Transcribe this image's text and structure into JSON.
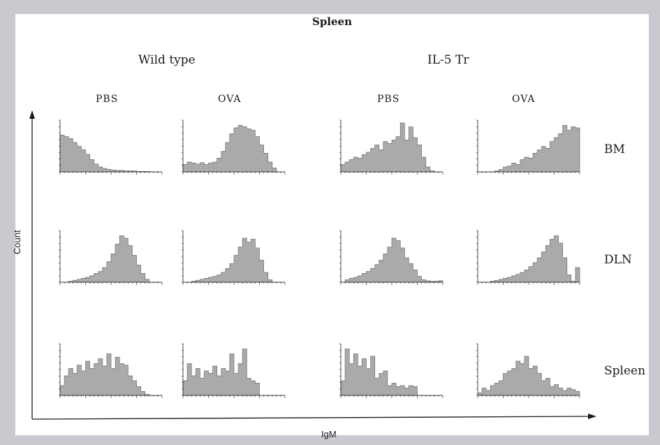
{
  "figure": {
    "title": "Spleen",
    "groups": [
      "Wild type",
      "IL-5 Tr"
    ],
    "columns": [
      "PBS",
      "OVA",
      "PBS",
      "OVA"
    ],
    "rows": [
      "BM",
      "DLN",
      "Spleen"
    ],
    "y_axis_label": "Count",
    "x_axis_label": "IgM"
  },
  "colors": {
    "background": "#c9cacf",
    "panel": "#ffffff",
    "histogram_fill": "#a9aaaa",
    "histogram_stroke": "#6e6e6e",
    "axis": "#1a1a1a"
  },
  "chart_data": {
    "type": "area",
    "description_of_values": "relative count (0-1 of panel height) across IgM fluorescence bins, 24 bins per histogram",
    "xlabel": "IgM",
    "ylabel": "Count",
    "grid": false,
    "panels": [
      {
        "row": "BM",
        "column": "PBS",
        "group": "Wild type",
        "values": [
          0.75,
          0.72,
          0.68,
          0.6,
          0.52,
          0.45,
          0.36,
          0.25,
          0.16,
          0.1,
          0.07,
          0.05,
          0.04,
          0.03,
          0.03,
          0.02,
          0.02,
          0.02,
          0.01,
          0.01,
          0.01,
          0,
          0,
          0
        ]
      },
      {
        "row": "BM",
        "column": "OVA",
        "group": "Wild type",
        "values": [
          0.15,
          0.2,
          0.18,
          0.16,
          0.19,
          0.15,
          0.18,
          0.2,
          0.28,
          0.42,
          0.6,
          0.78,
          0.9,
          0.95,
          0.92,
          0.88,
          0.85,
          0.72,
          0.55,
          0.38,
          0.2,
          0.08,
          0,
          0
        ]
      },
      {
        "row": "BM",
        "column": "PBS",
        "group": "IL-5 Tr",
        "values": [
          0.15,
          0.2,
          0.25,
          0.3,
          0.28,
          0.35,
          0.4,
          0.48,
          0.55,
          0.45,
          0.62,
          0.58,
          0.65,
          0.72,
          1.0,
          0.65,
          0.92,
          0.7,
          0.55,
          0.3,
          0.1,
          0.02,
          0,
          0
        ]
      },
      {
        "row": "BM",
        "column": "OVA",
        "group": "IL-5 Tr",
        "values": [
          0,
          0,
          0,
          0,
          0.02,
          0.05,
          0.1,
          0.12,
          0.18,
          0.15,
          0.25,
          0.3,
          0.28,
          0.38,
          0.45,
          0.52,
          0.48,
          0.62,
          0.7,
          0.78,
          0.95,
          0.85,
          0.92,
          0.9
        ]
      },
      {
        "row": "DLN",
        "column": "PBS",
        "group": "Wild type",
        "values": [
          0,
          0,
          0.02,
          0.04,
          0.06,
          0.08,
          0.1,
          0.13,
          0.18,
          0.22,
          0.3,
          0.42,
          0.58,
          0.78,
          0.95,
          0.9,
          0.75,
          0.55,
          0.35,
          0.18,
          0.06,
          0,
          0,
          0
        ]
      },
      {
        "row": "DLN",
        "column": "OVA",
        "group": "Wild type",
        "values": [
          0,
          0,
          0.02,
          0.04,
          0.06,
          0.08,
          0.1,
          0.12,
          0.15,
          0.2,
          0.28,
          0.38,
          0.55,
          0.72,
          0.9,
          0.82,
          0.88,
          0.7,
          0.45,
          0.2,
          0.05,
          0,
          0,
          0
        ]
      },
      {
        "row": "DLN",
        "column": "PBS",
        "group": "IL-5 Tr",
        "values": [
          0,
          0.05,
          0.08,
          0.1,
          0.13,
          0.18,
          0.22,
          0.28,
          0.36,
          0.45,
          0.58,
          0.72,
          0.9,
          0.85,
          0.7,
          0.5,
          0.38,
          0.25,
          0.12,
          0.05,
          0.03,
          0.02,
          0.02,
          0.03
        ]
      },
      {
        "row": "DLN",
        "column": "OVA",
        "group": "IL-5 Tr",
        "values": [
          0,
          0,
          0,
          0.02,
          0.04,
          0.06,
          0.08,
          0.1,
          0.13,
          0.16,
          0.2,
          0.25,
          0.32,
          0.4,
          0.5,
          0.62,
          0.75,
          0.88,
          0.95,
          0.8,
          0.5,
          0.15,
          0.02,
          0.3
        ]
      },
      {
        "row": "Spleen",
        "column": "PBS",
        "group": "Wild type",
        "values": [
          0.2,
          0.4,
          0.55,
          0.45,
          0.62,
          0.5,
          0.7,
          0.55,
          0.65,
          0.75,
          0.6,
          0.85,
          0.55,
          0.78,
          0.65,
          0.62,
          0.4,
          0.3,
          0.18,
          0.08,
          0.02,
          0,
          0,
          0
        ]
      },
      {
        "row": "Spleen",
        "column": "OVA",
        "group": "Wild type",
        "values": [
          0.3,
          0.65,
          0.4,
          0.55,
          0.35,
          0.5,
          0.45,
          0.6,
          0.4,
          0.55,
          0.5,
          0.85,
          0.45,
          0.65,
          0.95,
          0.35,
          0.3,
          0.25,
          0,
          0,
          0,
          0,
          0,
          0
        ]
      },
      {
        "row": "Spleen",
        "column": "PBS",
        "group": "IL-5 Tr",
        "values": [
          0.3,
          0.95,
          0.65,
          0.85,
          0.6,
          0.75,
          0.55,
          0.8,
          0.35,
          0.45,
          0.5,
          0.2,
          0.25,
          0.18,
          0.2,
          0.15,
          0.2,
          0.18,
          0,
          0,
          0,
          0,
          0,
          0
        ]
      },
      {
        "row": "Spleen",
        "column": "OVA",
        "group": "IL-5 Tr",
        "values": [
          0.05,
          0.15,
          0.1,
          0.2,
          0.25,
          0.3,
          0.45,
          0.5,
          0.55,
          0.7,
          0.65,
          0.8,
          0.55,
          0.6,
          0.45,
          0.3,
          0.35,
          0.18,
          0.22,
          0.15,
          0.1,
          0.15,
          0.12,
          0.08
        ]
      }
    ]
  }
}
